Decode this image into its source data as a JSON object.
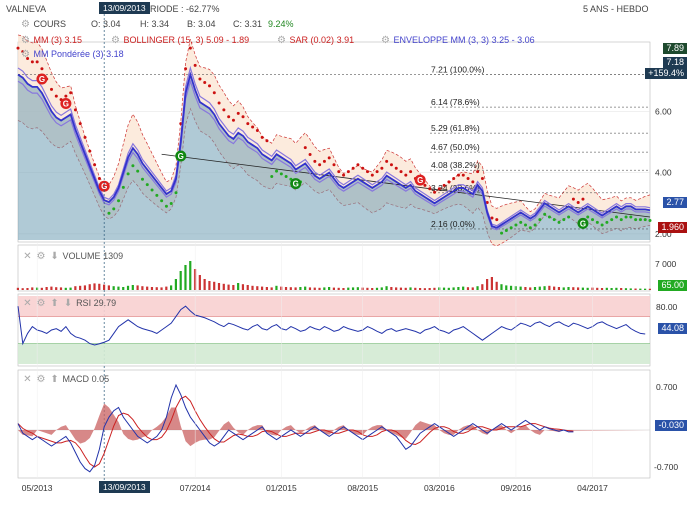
{
  "header": {
    "symbol": "VALNEVA",
    "cours_label": "COURS",
    "ohlc": {
      "o": "O: 3.04",
      "h": "H: 3.34",
      "b": "B: 3.04",
      "c": "C: 3.31",
      "chg": "9.24%"
    },
    "period_change": "RIODE : -62.77%",
    "range": "5 ANS - HEBDO",
    "crosshair_date": "13/09/2013",
    "indicators": [
      {
        "label": "MM (3)",
        "value": "3.15",
        "color": "#cc2222"
      },
      {
        "label": "BOLLINGER (15, 3)",
        "value": "5.09 - 1.89",
        "color": "#cc2222"
      },
      {
        "label": "SAR (0.02)",
        "value": "3.91",
        "color": "#cc2222"
      },
      {
        "label": "ENVELOPPE MM (3, 3)",
        "value": "3.25 - 3.06",
        "color": "#4444cc"
      },
      {
        "label": "MM Pondérée (3)",
        "value": "3.18",
        "color": "#4444cc"
      }
    ]
  },
  "panels": {
    "volume": {
      "label": "VOLUME",
      "value": "1309"
    },
    "rsi": {
      "label": "RSI",
      "value": "29.79"
    },
    "macd": {
      "label": "MACD",
      "value": "0.05"
    }
  },
  "price_tags": {
    "top": "7.89",
    "last": "7.18",
    "chg": "+159.4%",
    "current": "2.77",
    "low": "1.960"
  },
  "axis_tags": {
    "volume_hi": "7 000",
    "volume_cur": "65.00",
    "rsi_80": "80.00",
    "rsi_cur": "44.08",
    "macd_hi": "0.700",
    "macd_cur": "-0.030",
    "macd_lo": "-0.700"
  },
  "colors": {
    "price": "#3333cc",
    "bollinger": "#cc3333",
    "sar": "#cc1111",
    "sar_up": "#22aa22",
    "volume": "#cc3333",
    "volume_up": "#22aa22"
  },
  "chart_data": {
    "type": "line",
    "title": "VALNEVA",
    "x_ticks": [
      "05/2013",
      "13/09/2013",
      "07/2014",
      "01/2015",
      "08/2015",
      "03/2016",
      "09/2016",
      "04/2017"
    ],
    "y_ticks": [
      "6.00",
      "4.00",
      "2.00"
    ],
    "ylim": [
      1.8,
      8.2
    ],
    "fibonacci": [
      {
        "value": 7.21,
        "label": "7.21",
        "pct": "(100.0%)"
      },
      {
        "value": 6.14,
        "label": "6.14",
        "pct": "(78.6%)"
      },
      {
        "value": 5.29,
        "label": "5.29",
        "pct": "(61.8%)"
      },
      {
        "value": 4.67,
        "label": "4.67",
        "pct": "(50.0%)"
      },
      {
        "value": 4.08,
        "label": "4.08",
        "pct": "(38.2%)"
      },
      {
        "value": 3.34,
        "label": "3.34",
        "pct": "(23.6%)"
      },
      {
        "value": 2.16,
        "label": "2.16",
        "pct": "(0.0%)"
      }
    ],
    "series": [
      {
        "name": "COURS",
        "values": [
          7.2,
          7.1,
          6.9,
          6.8,
          6.8,
          6.6,
          6.3,
          6.0,
          5.8,
          5.7,
          5.8,
          5.9,
          5.4,
          5.0,
          4.6,
          4.2,
          3.8,
          3.4,
          3.1,
          3.04,
          3.2,
          3.5,
          4.0,
          4.5,
          4.8,
          4.6,
          4.3,
          4.1,
          3.9,
          3.7,
          3.5,
          3.3,
          3.4,
          3.8,
          5.0,
          6.6,
          7.2,
          6.7,
          6.3,
          6.2,
          6.1,
          5.9,
          5.6,
          5.4,
          5.2,
          5.1,
          5.3,
          5.2,
          5.0,
          4.9,
          4.8,
          4.6,
          4.5,
          4.4,
          4.6,
          4.5,
          4.4,
          4.3,
          4.1,
          4.2,
          4.3,
          4.1,
          3.9,
          3.8,
          3.9,
          4.0,
          3.8,
          3.6,
          3.5,
          3.6,
          3.7,
          3.8,
          3.7,
          3.6,
          3.5,
          3.6,
          3.7,
          3.9,
          3.8,
          3.7,
          3.6,
          3.5,
          3.6,
          3.4,
          3.3,
          3.2,
          3.1,
          3.0,
          3.1,
          3.2,
          3.3,
          3.4,
          3.5,
          3.5,
          3.4,
          3.3,
          3.6,
          3.4,
          2.7,
          2.25,
          2.2,
          2.3,
          2.4,
          2.5,
          2.6,
          2.7,
          2.6,
          2.5,
          2.6,
          2.8,
          3.0,
          2.9,
          2.8,
          2.7,
          2.8,
          2.9,
          2.8,
          2.7,
          2.8,
          2.9,
          2.8,
          2.7,
          2.6,
          2.7,
          2.8,
          2.9,
          2.8,
          2.9,
          2.9,
          2.8,
          2.8,
          2.8,
          2.77
        ]
      }
    ],
    "volume": [
      300,
      200,
      250,
      400,
      350,
      300,
      500,
      600,
      450,
      400,
      300,
      350,
      700,
      800,
      900,
      1200,
      1400,
      1309,
      1100,
      900,
      700,
      600,
      500,
      800,
      1000,
      900,
      700,
      600,
      500,
      450,
      400,
      600,
      900,
      2500,
      4500,
      6000,
      7000,
      5000,
      3500,
      2500,
      2000,
      1800,
      1500,
      1300,
      1100,
      1000,
      1500,
      1200,
      1000,
      800,
      700,
      600,
      500,
      400,
      800,
      600,
      500,
      450,
      400,
      500,
      600,
      400,
      350,
      300,
      400,
      500,
      350,
      300,
      250,
      350,
      400,
      450,
      350,
      300,
      250,
      300,
      400,
      700,
      500,
      400,
      350,
      300,
      400,
      300,
      250,
      200,
      250,
      300,
      400,
      350,
      300,
      400,
      500,
      600,
      450,
      400,
      700,
      1200,
      2500,
      3000,
      1800,
      1200,
      900,
      800,
      700,
      600,
      500,
      400,
      500,
      600,
      700,
      800,
      600,
      500,
      400,
      500,
      450,
      400,
      350,
      300,
      350,
      300,
      250,
      300,
      250,
      300,
      250,
      200,
      150,
      120,
      100,
      80,
      65
    ],
    "rsi": [
      85,
      30,
      45,
      55,
      50,
      48,
      45,
      50,
      52,
      48,
      55,
      45,
      40,
      38,
      35,
      30,
      28,
      29.79,
      32,
      35,
      45,
      55,
      60,
      65,
      60,
      55,
      52,
      50,
      48,
      45,
      50,
      55,
      60,
      70,
      80,
      85,
      78,
      72,
      70,
      68,
      65,
      62,
      58,
      55,
      60,
      58,
      55,
      52,
      50,
      55,
      58,
      52,
      50,
      55,
      58,
      52,
      50,
      55,
      52,
      48,
      50,
      55,
      52,
      50,
      55,
      52,
      48,
      50,
      55,
      52,
      50,
      48,
      50,
      55,
      52,
      48,
      45,
      50,
      52,
      48,
      50,
      52,
      50,
      48,
      45,
      50,
      52,
      55,
      50,
      48,
      45,
      50,
      52,
      55,
      50,
      45,
      40,
      35,
      40,
      45,
      50,
      55,
      52,
      50,
      55,
      60,
      58,
      55,
      60,
      62,
      58,
      55,
      60,
      62,
      58,
      55,
      60,
      58,
      55,
      52,
      55,
      60,
      62,
      58,
      55,
      52,
      55,
      58,
      52,
      48,
      45,
      44.08
    ],
    "macd": [
      0.1,
      -0.05,
      -0.1,
      -0.15,
      -0.1,
      -0.15,
      -0.2,
      -0.25,
      -0.2,
      -0.15,
      -0.1,
      -0.2,
      -0.35,
      -0.5,
      -0.6,
      -0.65,
      -0.55,
      -0.3,
      0.05,
      0.2,
      0.3,
      0.35,
      0.2,
      0.1,
      0.0,
      -0.1,
      -0.15,
      -0.2,
      -0.15,
      -0.1,
      0.0,
      0.2,
      0.5,
      0.7,
      0.55,
      0.35,
      0.2,
      0.1,
      0.0,
      -0.1,
      -0.2,
      -0.25,
      -0.2,
      -0.1,
      0.0,
      -0.05,
      -0.1,
      -0.15,
      -0.1,
      -0.05,
      0.0,
      0.05,
      -0.05,
      -0.1,
      -0.15,
      -0.1,
      -0.05,
      0.0,
      -0.05,
      -0.1,
      -0.05,
      0.0,
      0.05,
      0.0,
      -0.05,
      -0.1,
      -0.05,
      0.0,
      0.05,
      0.0,
      -0.05,
      -0.1,
      -0.15,
      -0.1,
      -0.05,
      0.0,
      0.05,
      0.0,
      -0.05,
      -0.1,
      -0.2,
      -0.3,
      -0.25,
      -0.15,
      -0.05,
      0.0,
      0.05,
      0.1,
      0.05,
      0.0,
      -0.05,
      -0.1,
      -0.05,
      0.0,
      0.05,
      0.1,
      0.05,
      0.0,
      -0.05,
      0.0,
      0.05,
      0.1,
      0.05,
      0.0,
      0.05,
      0.1,
      0.15,
      0.1,
      0.05,
      0.0,
      0.05,
      0.02,
      0.0,
      -0.02,
      0.0,
      -0.03,
      -0.03
    ]
  }
}
